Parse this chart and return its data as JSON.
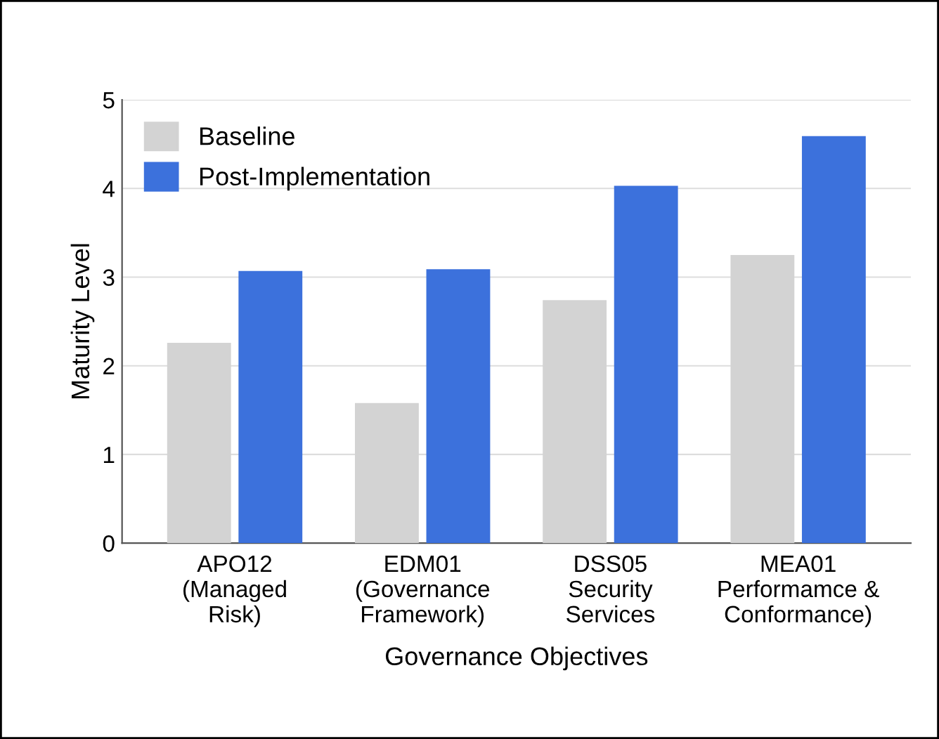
{
  "chart_data": {
    "type": "bar",
    "xlabel": "Governance Objectives",
    "ylabel": "Maturity Level",
    "categories": [
      "APO12\n(Managed\nRisk)",
      "EDM01\n(Governance\nFramework)",
      "DSS05\nSecurity\nServices",
      "MEA01\nPerformamce &\nConformance)"
    ],
    "series": [
      {
        "name": "Baseline",
        "color": "#d3d3d3",
        "values": [
          2.26,
          1.58,
          2.74,
          3.25
        ]
      },
      {
        "name": "Post-Implementation",
        "color": "#3c71dc",
        "values": [
          3.07,
          3.09,
          4.03,
          4.59
        ]
      }
    ],
    "ylim": [
      0,
      5
    ],
    "yticks": [
      0,
      1,
      2,
      3,
      4,
      5
    ],
    "grid": "y",
    "legend": "top left"
  }
}
